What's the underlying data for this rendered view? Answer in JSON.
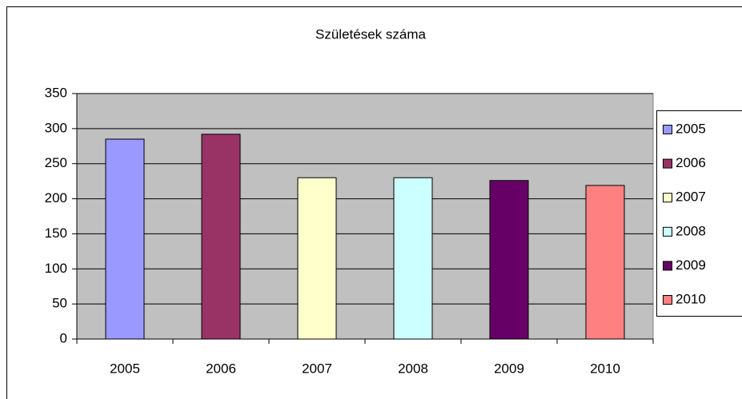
{
  "chart_data": {
    "type": "bar",
    "title": "Születések száma",
    "categories": [
      "2005",
      "2006",
      "2007",
      "2008",
      "2009",
      "2010"
    ],
    "values": [
      285,
      292,
      230,
      230,
      226,
      219
    ],
    "colors": [
      "#9999ff",
      "#993366",
      "#ffffcc",
      "#ccffff",
      "#660066",
      "#ff8080"
    ],
    "ylim": [
      0,
      350
    ],
    "yticks": [
      0,
      50,
      100,
      150,
      200,
      250,
      300,
      350
    ],
    "grid": true,
    "plot_background": "#c0c0c0",
    "legend": "right"
  }
}
